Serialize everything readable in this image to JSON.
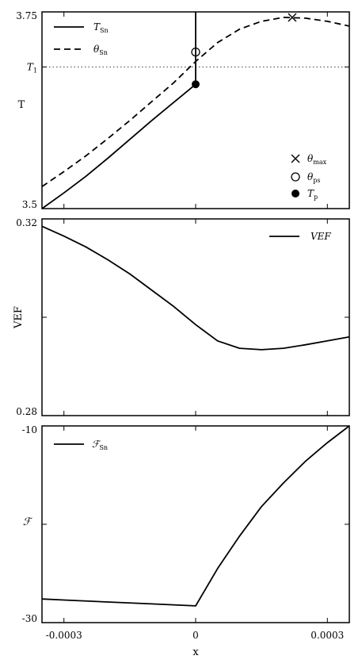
{
  "chart_data": [
    {
      "type": "line",
      "ylabel": "T",
      "xlim": [
        -0.00035,
        0.00035
      ],
      "ylim": [
        3.5,
        3.75
      ],
      "y_ticks": [
        {
          "value": 3.5,
          "label": "3.5"
        },
        {
          "value": 3.68,
          "label": "T",
          "sub": "1"
        },
        {
          "value": 3.75,
          "label": "3.75"
        }
      ],
      "reference_line": {
        "y": 3.68,
        "style": "dotted"
      },
      "vertical_line": {
        "x": 0,
        "y_from": 3.658,
        "y_to": 3.75,
        "style": "solid"
      },
      "series": [
        {
          "name": "T",
          "name_sub": "Sn",
          "style": "solid",
          "x": [
            -0.00035,
            -0.0003,
            -0.00025,
            -0.0002,
            -0.00015,
            -0.0001,
            -5e-05,
            0
          ],
          "y": [
            3.5,
            3.52,
            3.541,
            3.564,
            3.588,
            3.612,
            3.635,
            3.658
          ]
        },
        {
          "name": "θ",
          "name_sub": "Sn",
          "style": "dashed",
          "x": [
            -0.00035,
            -0.0003,
            -0.00025,
            -0.0002,
            -0.00015,
            -0.0001,
            -5e-05,
            0,
            5e-05,
            0.0001,
            0.00015,
            0.0002,
            0.00025,
            0.0003,
            0.00035
          ],
          "y": [
            3.528,
            3.547,
            3.567,
            3.589,
            3.612,
            3.636,
            3.66,
            3.687,
            3.711,
            3.728,
            3.738,
            3.743,
            3.742,
            3.738,
            3.732
          ]
        }
      ],
      "markers": [
        {
          "name": "θ",
          "sub": "max",
          "symbol": "x",
          "x": 0.00022,
          "y": 3.743
        },
        {
          "name": "θ",
          "sub": "ps",
          "symbol": "open-circle",
          "x": 0,
          "y": 3.699
        },
        {
          "name": "T",
          "sub": "p",
          "symbol": "filled-circle",
          "x": 0,
          "y": 3.658
        }
      ]
    },
    {
      "type": "line",
      "ylabel": "VEF",
      "xlim": [
        -0.00035,
        0.00035
      ],
      "ylim": [
        0.28,
        0.32
      ],
      "y_ticks": [
        {
          "value": 0.28,
          "label": "0.28"
        },
        {
          "value": 0.3,
          "label": ""
        },
        {
          "value": 0.32,
          "label": "0.32"
        }
      ],
      "series": [
        {
          "name": "VEF",
          "style": "solid",
          "x": [
            -0.00035,
            -0.0003,
            -0.00025,
            -0.0002,
            -0.00015,
            -0.0001,
            -5e-05,
            0,
            5e-05,
            0.0001,
            0.00015,
            0.0002,
            0.00025,
            0.0003,
            0.00035
          ],
          "y": [
            0.3185,
            0.3165,
            0.3143,
            0.3117,
            0.3088,
            0.3055,
            0.3022,
            0.2985,
            0.2952,
            0.2937,
            0.2934,
            0.2937,
            0.2944,
            0.2952,
            0.296
          ]
        }
      ]
    },
    {
      "type": "line",
      "ylabel": "ℱ",
      "xlabel": "x",
      "xlim": [
        -0.00035,
        0.00035
      ],
      "ylim": [
        -30,
        -10
      ],
      "x_ticks": [
        {
          "value": -0.0003,
          "label": "-0.0003"
        },
        {
          "value": 0,
          "label": "0"
        },
        {
          "value": 0.0003,
          "label": "0.0003"
        }
      ],
      "y_ticks": [
        {
          "value": -30,
          "label": "-30"
        },
        {
          "value": -20,
          "label": ""
        },
        {
          "value": -10,
          "label": "-10"
        }
      ],
      "series": [
        {
          "name": "ℱ",
          "name_sub": "Sn",
          "style": "solid",
          "x": [
            -0.00035,
            -0.0003,
            -0.0002,
            -0.0001,
            0,
            5e-05,
            0.0001,
            0.00015,
            0.0002,
            0.00025,
            0.0003,
            0.00035
          ],
          "y": [
            -27.6,
            -27.7,
            -27.9,
            -28.1,
            -28.3,
            -24.5,
            -21.2,
            -18.2,
            -15.8,
            -13.6,
            -11.7,
            -10.0
          ]
        }
      ]
    }
  ]
}
